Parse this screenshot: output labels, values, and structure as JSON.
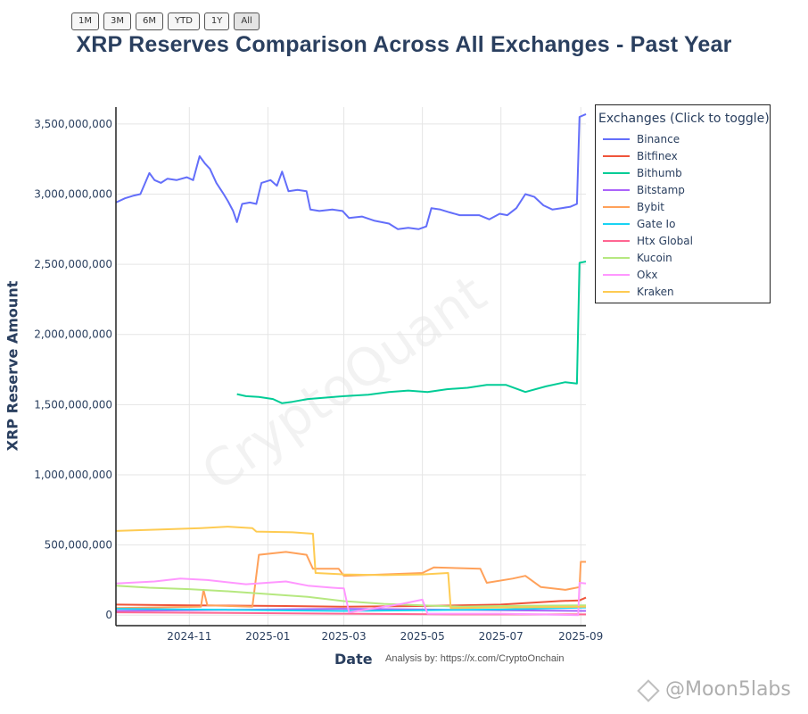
{
  "range_selector": [
    "1M",
    "3M",
    "6M",
    "YTD",
    "1Y",
    "All"
  ],
  "range_active": "All",
  "title": "XRP Reserves Comparison Across All Exchanges - Past Year",
  "credit": "Analysis by: https://x.com/CryptoOnchain",
  "watermark": "CryptoQuant",
  "brand_watermark": "@Moon5labs",
  "legend_title": "Exchanges (Click to toggle)",
  "chart_data": {
    "type": "line",
    "title": "XRP Reserves Comparison Across All Exchanges - Past Year",
    "xlabel": "Date",
    "ylabel": "XRP Reserve Amount",
    "x_ticks": [
      "2024-11",
      "2025-01",
      "2025-03",
      "2025-05",
      "2025-07",
      "2025-09"
    ],
    "y_ticks": [
      "0",
      "500,000,000",
      "1,000,000,000",
      "1,500,000,000",
      "2,000,000,000",
      "2,500,000,000",
      "3,000,000,000",
      "3,500,000,000"
    ],
    "y_tick_values": [
      0,
      500000000,
      1000000000,
      1500000000,
      2000000000,
      2500000000,
      3000000000,
      3500000000
    ],
    "xlim": [
      "2024-09-05",
      "2025-09-05"
    ],
    "ylim": [
      -75000000,
      3620000000
    ],
    "grid": true,
    "legend_position": "top-right, outside plot",
    "series": [
      {
        "name": "Binance",
        "color": "#636efa",
        "points": [
          [
            "2024-09-05",
            2940000000
          ],
          [
            "2024-09-12",
            2970000000
          ],
          [
            "2024-09-19",
            2990000000
          ],
          [
            "2024-09-24",
            3000000000
          ],
          [
            "2024-10-01",
            3150000000
          ],
          [
            "2024-10-05",
            3100000000
          ],
          [
            "2024-10-10",
            3080000000
          ],
          [
            "2024-10-15",
            3110000000
          ],
          [
            "2024-10-22",
            3100000000
          ],
          [
            "2024-10-30",
            3120000000
          ],
          [
            "2024-11-04",
            3100000000
          ],
          [
            "2024-11-09",
            3270000000
          ],
          [
            "2024-11-13",
            3220000000
          ],
          [
            "2024-11-17",
            3180000000
          ],
          [
            "2024-11-22",
            3080000000
          ],
          [
            "2024-11-27",
            3010000000
          ],
          [
            "2024-12-01",
            2950000000
          ],
          [
            "2024-12-05",
            2880000000
          ],
          [
            "2024-12-08",
            2800000000
          ],
          [
            "2024-12-12",
            2930000000
          ],
          [
            "2024-12-18",
            2940000000
          ],
          [
            "2024-12-23",
            2930000000
          ],
          [
            "2024-12-27",
            3080000000
          ],
          [
            "2025-01-03",
            3100000000
          ],
          [
            "2025-01-08",
            3060000000
          ],
          [
            "2025-01-12",
            3160000000
          ],
          [
            "2025-01-17",
            3020000000
          ],
          [
            "2025-01-24",
            3030000000
          ],
          [
            "2025-01-31",
            3020000000
          ],
          [
            "2025-02-03",
            2890000000
          ],
          [
            "2025-02-10",
            2880000000
          ],
          [
            "2025-02-20",
            2890000000
          ],
          [
            "2025-02-28",
            2880000000
          ],
          [
            "2025-03-05",
            2830000000
          ],
          [
            "2025-03-15",
            2840000000
          ],
          [
            "2025-03-25",
            2810000000
          ],
          [
            "2025-04-05",
            2790000000
          ],
          [
            "2025-04-12",
            2750000000
          ],
          [
            "2025-04-20",
            2760000000
          ],
          [
            "2025-04-28",
            2750000000
          ],
          [
            "2025-05-04",
            2770000000
          ],
          [
            "2025-05-08",
            2900000000
          ],
          [
            "2025-05-15",
            2890000000
          ],
          [
            "2025-05-22",
            2870000000
          ],
          [
            "2025-05-30",
            2850000000
          ],
          [
            "2025-06-06",
            2850000000
          ],
          [
            "2025-06-14",
            2850000000
          ],
          [
            "2025-06-22",
            2820000000
          ],
          [
            "2025-06-30",
            2860000000
          ],
          [
            "2025-07-06",
            2850000000
          ],
          [
            "2025-07-13",
            2900000000
          ],
          [
            "2025-07-20",
            3000000000
          ],
          [
            "2025-07-27",
            2980000000
          ],
          [
            "2025-08-03",
            2920000000
          ],
          [
            "2025-08-10",
            2890000000
          ],
          [
            "2025-08-17",
            2900000000
          ],
          [
            "2025-08-24",
            2910000000
          ],
          [
            "2025-08-29",
            2930000000
          ],
          [
            "2025-08-31",
            3550000000
          ],
          [
            "2025-09-05",
            3570000000
          ]
        ]
      },
      {
        "name": "Bitfinex",
        "color": "#ef553b",
        "points": [
          [
            "2024-09-05",
            75000000
          ],
          [
            "2024-11-01",
            70000000
          ],
          [
            "2025-01-15",
            65000000
          ],
          [
            "2025-03-01",
            60000000
          ],
          [
            "2025-05-01",
            65000000
          ],
          [
            "2025-07-01",
            75000000
          ],
          [
            "2025-08-15",
            100000000
          ],
          [
            "2025-08-31",
            105000000
          ],
          [
            "2025-09-05",
            125000000
          ]
        ]
      },
      {
        "name": "Bithumb",
        "color": "#00cc96",
        "points": [
          [
            "2024-12-08",
            1575000000
          ],
          [
            "2024-12-15",
            1560000000
          ],
          [
            "2024-12-25",
            1555000000
          ],
          [
            "2025-01-05",
            1540000000
          ],
          [
            "2025-01-12",
            1510000000
          ],
          [
            "2025-01-20",
            1520000000
          ],
          [
            "2025-02-01",
            1540000000
          ],
          [
            "2025-02-15",
            1550000000
          ],
          [
            "2025-03-01",
            1560000000
          ],
          [
            "2025-03-20",
            1570000000
          ],
          [
            "2025-04-05",
            1590000000
          ],
          [
            "2025-04-20",
            1600000000
          ],
          [
            "2025-05-05",
            1590000000
          ],
          [
            "2025-05-20",
            1610000000
          ],
          [
            "2025-06-05",
            1620000000
          ],
          [
            "2025-06-20",
            1640000000
          ],
          [
            "2025-07-05",
            1640000000
          ],
          [
            "2025-07-20",
            1590000000
          ],
          [
            "2025-08-05",
            1630000000
          ],
          [
            "2025-08-20",
            1660000000
          ],
          [
            "2025-08-29",
            1650000000
          ],
          [
            "2025-08-31",
            2510000000
          ],
          [
            "2025-09-05",
            2520000000
          ]
        ]
      },
      {
        "name": "Bitstamp",
        "color": "#ab63fa",
        "points": [
          [
            "2024-09-05",
            30000000
          ],
          [
            "2024-11-01",
            35000000
          ],
          [
            "2025-01-01",
            40000000
          ],
          [
            "2025-03-01",
            45000000
          ],
          [
            "2025-05-01",
            40000000
          ],
          [
            "2025-07-01",
            35000000
          ],
          [
            "2025-09-05",
            30000000
          ]
        ]
      },
      {
        "name": "Bybit",
        "color": "#ffa15a",
        "points": [
          [
            "2024-09-05",
            50000000
          ],
          [
            "2024-11-10",
            60000000
          ],
          [
            "2024-11-12",
            180000000
          ],
          [
            "2024-11-15",
            70000000
          ],
          [
            "2024-12-20",
            60000000
          ],
          [
            "2024-12-25",
            430000000
          ],
          [
            "2025-01-15",
            450000000
          ],
          [
            "2025-01-31",
            430000000
          ],
          [
            "2025-02-05",
            330000000
          ],
          [
            "2025-02-25",
            330000000
          ],
          [
            "2025-03-01",
            280000000
          ],
          [
            "2025-04-01",
            290000000
          ],
          [
            "2025-05-01",
            300000000
          ],
          [
            "2025-05-10",
            340000000
          ],
          [
            "2025-06-15",
            330000000
          ],
          [
            "2025-06-20",
            230000000
          ],
          [
            "2025-07-10",
            260000000
          ],
          [
            "2025-07-20",
            280000000
          ],
          [
            "2025-08-01",
            200000000
          ],
          [
            "2025-08-20",
            180000000
          ],
          [
            "2025-08-31",
            200000000
          ],
          [
            "2025-09-01",
            380000000
          ],
          [
            "2025-09-05",
            380000000
          ]
        ]
      },
      {
        "name": "Gate Io",
        "color": "#19d3f3",
        "points": [
          [
            "2024-09-05",
            45000000
          ],
          [
            "2024-11-01",
            40000000
          ],
          [
            "2025-01-01",
            35000000
          ],
          [
            "2025-03-01",
            30000000
          ],
          [
            "2025-05-01",
            35000000
          ],
          [
            "2025-07-01",
            40000000
          ],
          [
            "2025-09-05",
            55000000
          ]
        ]
      },
      {
        "name": "Htx Global",
        "color": "#ff6692",
        "points": [
          [
            "2024-09-05",
            20000000
          ],
          [
            "2024-12-01",
            15000000
          ],
          [
            "2025-03-01",
            10000000
          ],
          [
            "2025-06-01",
            5000000
          ],
          [
            "2025-09-05",
            5000000
          ]
        ]
      },
      {
        "name": "Kucoin",
        "color": "#b6e880",
        "points": [
          [
            "2024-09-05",
            210000000
          ],
          [
            "2024-10-01",
            195000000
          ],
          [
            "2024-11-01",
            185000000
          ],
          [
            "2024-12-01",
            170000000
          ],
          [
            "2025-01-01",
            150000000
          ],
          [
            "2025-02-01",
            130000000
          ],
          [
            "2025-03-01",
            100000000
          ],
          [
            "2025-04-01",
            80000000
          ],
          [
            "2025-05-01",
            70000000
          ],
          [
            "2025-06-01",
            60000000
          ],
          [
            "2025-07-01",
            65000000
          ],
          [
            "2025-09-05",
            70000000
          ]
        ]
      },
      {
        "name": "Okx",
        "color": "#ff97ff",
        "points": [
          [
            "2024-09-05",
            225000000
          ],
          [
            "2024-10-05",
            240000000
          ],
          [
            "2024-10-25",
            260000000
          ],
          [
            "2024-11-15",
            250000000
          ],
          [
            "2024-12-15",
            220000000
          ],
          [
            "2025-01-15",
            240000000
          ],
          [
            "2025-02-01",
            210000000
          ],
          [
            "2025-02-20",
            195000000
          ],
          [
            "2025-03-01",
            190000000
          ],
          [
            "2025-03-05",
            20000000
          ],
          [
            "2025-04-15",
            80000000
          ],
          [
            "2025-05-01",
            110000000
          ],
          [
            "2025-05-05",
            10000000
          ],
          [
            "2025-07-01",
            10000000
          ],
          [
            "2025-08-01",
            5000000
          ],
          [
            "2025-08-30",
            0
          ],
          [
            "2025-08-31",
            230000000
          ],
          [
            "2025-09-05",
            225000000
          ]
        ]
      },
      {
        "name": "Kraken",
        "color": "#fecb52",
        "points": [
          [
            "2024-09-05",
            600000000
          ],
          [
            "2024-10-10",
            610000000
          ],
          [
            "2024-11-10",
            620000000
          ],
          [
            "2024-12-01",
            630000000
          ],
          [
            "2024-12-20",
            620000000
          ],
          [
            "2024-12-23",
            595000000
          ],
          [
            "2025-01-20",
            590000000
          ],
          [
            "2025-02-05",
            580000000
          ],
          [
            "2025-02-07",
            300000000
          ],
          [
            "2025-03-01",
            290000000
          ],
          [
            "2025-04-01",
            285000000
          ],
          [
            "2025-05-01",
            290000000
          ],
          [
            "2025-05-21",
            300000000
          ],
          [
            "2025-05-23",
            50000000
          ],
          [
            "2025-07-01",
            55000000
          ],
          [
            "2025-09-05",
            60000000
          ]
        ]
      }
    ]
  }
}
